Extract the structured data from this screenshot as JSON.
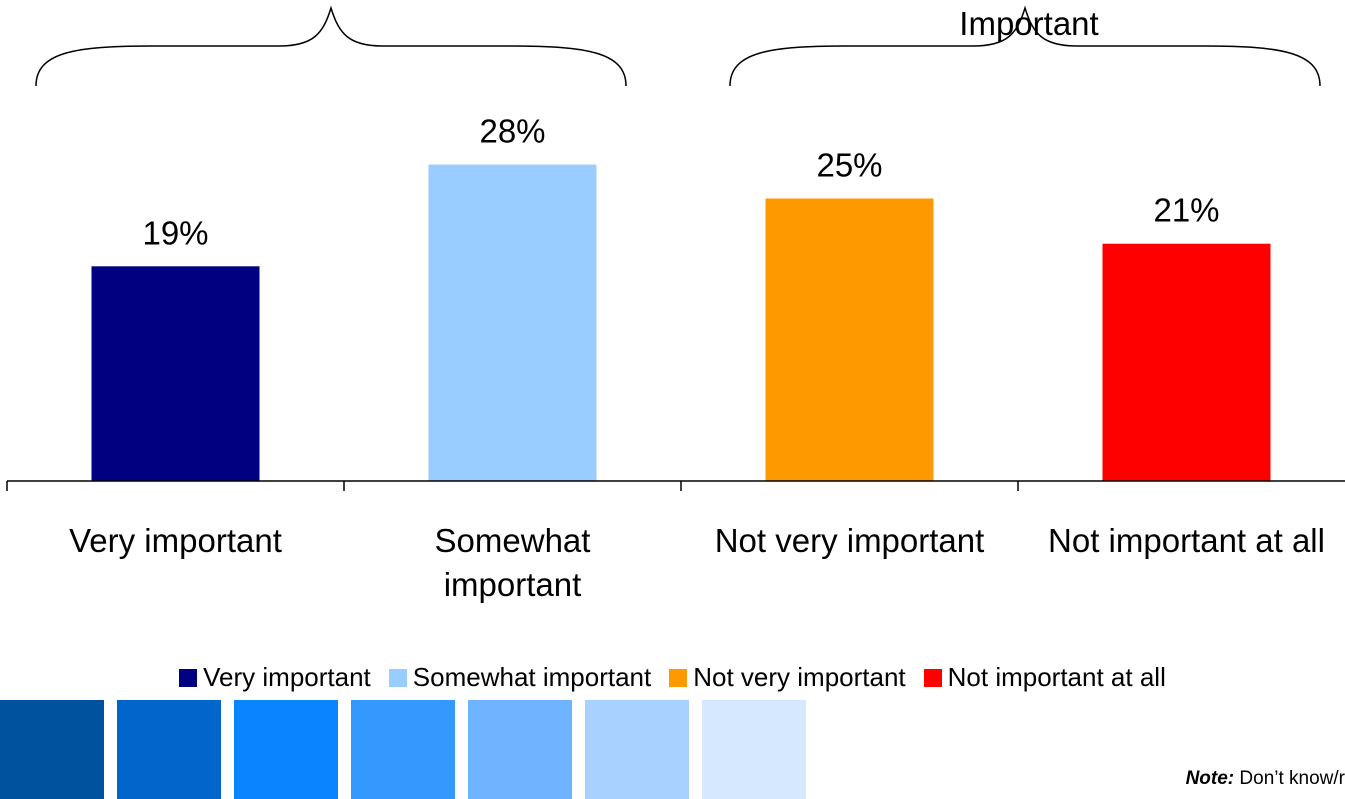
{
  "chart_data": {
    "type": "bar",
    "title": "",
    "xlabel": "",
    "ylabel": "",
    "ylim": [
      0,
      30
    ],
    "grid": false,
    "legend_placement": "bottom",
    "categories": [
      "Very important",
      "Somewhat important",
      "Not very important",
      "Not important at all"
    ],
    "category_lines": [
      [
        "Very important"
      ],
      [
        "Somewhat",
        "important"
      ],
      [
        "Not very important"
      ],
      [
        "Not important at all"
      ]
    ],
    "values": [
      19,
      28,
      25,
      21
    ],
    "data_labels": [
      "19%",
      "28%",
      "25%",
      "21%"
    ],
    "colors": [
      "#000080",
      "#99ccff",
      "#ff9900",
      "#ff0000"
    ],
    "annotations": [
      {
        "text": "",
        "spans": [
          0,
          1
        ]
      },
      {
        "text": "Important",
        "spans": [
          2,
          3
        ]
      }
    ]
  },
  "legend": [
    {
      "label": "Very important",
      "color": "#000080"
    },
    {
      "label": "Somewhat important",
      "color": "#99ccff"
    },
    {
      "label": "Not very important",
      "color": "#ff9900"
    },
    {
      "label": "Not important at all",
      "color": "#ff0000"
    }
  ],
  "decor_swatches": [
    "#00529e",
    "#0066cc",
    "#0a84ff",
    "#3399ff",
    "#6fb4ff",
    "#a8d1ff",
    "#d5e8ff"
  ],
  "note": {
    "label": "Note:",
    "text": " Don’t know/r"
  }
}
